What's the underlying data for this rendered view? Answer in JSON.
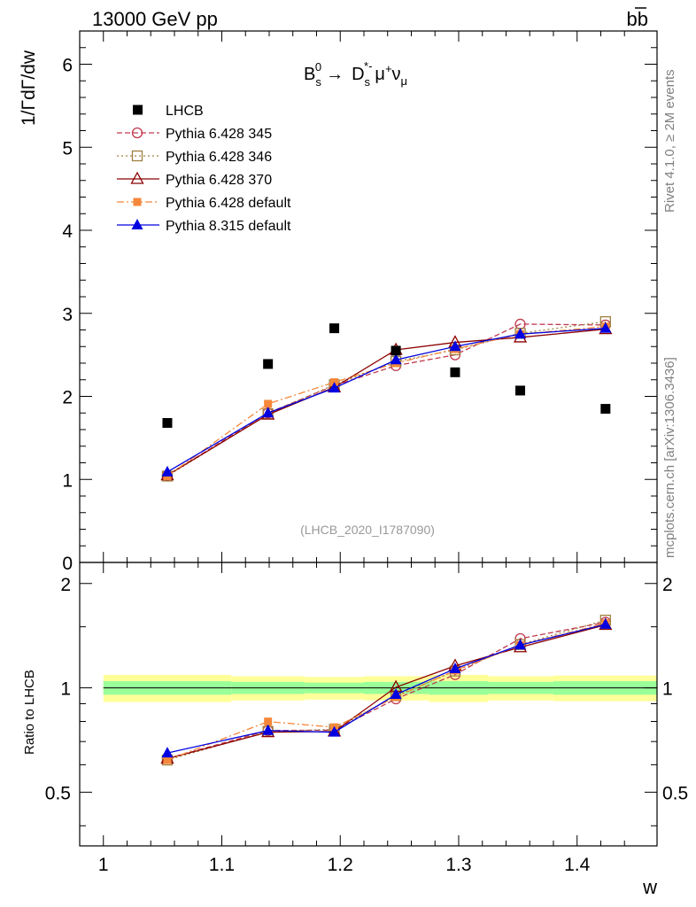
{
  "header": {
    "left": "13000 GeV pp",
    "right": "b",
    "right_bar": "b"
  },
  "side": {
    "rivet": "Rivet 4.1.0, ≥ 2M events",
    "mcplots": "mcplots.cern.ch [arXiv:1306.3436]"
  },
  "chart_data": {
    "type": "line",
    "title": {
      "b": "B",
      "b_sub": "s",
      "b_sup": "0",
      "arrow": "→",
      "d": "D",
      "d_sub": "s",
      "d_sup": "*-",
      "mu": "μ",
      "mu_sup": "+",
      "nu": "ν",
      "nu_sub": "μ"
    },
    "ylabel": "1/ΓdΓ/dw",
    "xlabel": "w",
    "ratio_ylabel": "Ratio to LHCB",
    "analysis_id": "(LHCB_2020_I1787090)",
    "xlim": [
      0.98,
      1.4675
    ],
    "ylim": [
      0,
      6.4
    ],
    "ratio_ylim": [
      0.35,
      2.3
    ],
    "x_ticks": [
      {
        "v": 1.0,
        "label": "1"
      },
      {
        "v": 1.1,
        "label": "1.1"
      },
      {
        "v": 1.2,
        "label": "1.2"
      },
      {
        "v": 1.3,
        "label": "1.3"
      },
      {
        "v": 1.4,
        "label": "1.4"
      }
    ],
    "y_ticks": [
      {
        "v": 0,
        "label": "0"
      },
      {
        "v": 1,
        "label": "1"
      },
      {
        "v": 2,
        "label": "2"
      },
      {
        "v": 3,
        "label": "3"
      },
      {
        "v": 4,
        "label": "4"
      },
      {
        "v": 5,
        "label": "5"
      },
      {
        "v": 6,
        "label": "6"
      }
    ],
    "ratio_ticks": [
      {
        "v": 0.5,
        "label": "0.5"
      },
      {
        "v": 1,
        "label": "1"
      },
      {
        "v": 2,
        "label": "2"
      }
    ],
    "bin_edges": [
      1.0,
      1.108,
      1.17,
      1.22,
      1.275,
      1.325,
      1.38,
      1.4675
    ],
    "x": [
      1.054,
      1.139,
      1.195,
      1.247,
      1.297,
      1.352,
      1.424
    ],
    "data": {
      "name": "LHCB",
      "values": [
        1.68,
        2.39,
        2.82,
        2.55,
        2.29,
        2.07,
        1.85
      ],
      "band_inner": [
        0.045,
        0.04,
        0.035,
        0.04,
        0.045,
        0.04,
        0.045
      ],
      "band_outer": [
        0.09,
        0.08,
        0.075,
        0.08,
        0.09,
        0.08,
        0.085
      ]
    },
    "series": [
      {
        "name": "Pythia 6.428 345",
        "values": [
          1.05,
          1.8,
          2.13,
          2.37,
          2.5,
          2.87,
          2.86
        ],
        "color": "#c03a4f",
        "marker": "circle-open",
        "dash": "6,3"
      },
      {
        "name": "Pythia 6.428 346",
        "values": [
          1.04,
          1.79,
          2.14,
          2.42,
          2.56,
          2.76,
          2.9
        ],
        "color": "#a08040",
        "marker": "square-open",
        "dash": "2,3"
      },
      {
        "name": "Pythia 6.428 370",
        "values": [
          1.05,
          1.78,
          2.11,
          2.56,
          2.65,
          2.71,
          2.81
        ],
        "color": "#8b0000",
        "marker": "triangle-open",
        "dash": ""
      },
      {
        "name": "Pythia 6.428 default",
        "values": [
          1.04,
          1.91,
          2.17,
          2.4,
          2.57,
          2.75,
          2.84
        ],
        "color": "#f5883a",
        "marker": "square-filled",
        "dash": "8,3,2,3"
      },
      {
        "name": "Pythia 8.315 default",
        "values": [
          1.09,
          1.8,
          2.1,
          2.44,
          2.6,
          2.75,
          2.82
        ],
        "color": "#0000e0",
        "marker": "triangle-filled",
        "dash": ""
      }
    ]
  }
}
